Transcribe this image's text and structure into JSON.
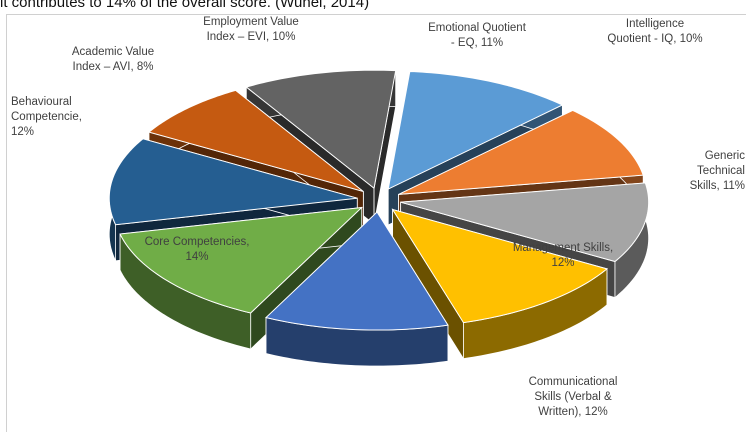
{
  "caption": "it contributes to 14% of the overall score. (Wuhel, 2014)",
  "chart_data": {
    "type": "pie",
    "style": "3d-exploded",
    "legend": "none",
    "slices": [
      {
        "label": "Emotional Quotient - EQ, 11%",
        "lines": [
          "Emotional Quotient",
          "- EQ, 11%"
        ],
        "value": 11,
        "color": "#5b9bd5"
      },
      {
        "label": "Intelligence Quotient - IQ, 10%",
        "lines": [
          "Intelligence",
          "Quotient - IQ, 10%"
        ],
        "value": 10,
        "color": "#ed7d31"
      },
      {
        "label": "Generic Technical Skills, 11%",
        "lines": [
          "Generic",
          "Technical",
          "Skills, 11%"
        ],
        "value": 11,
        "color": "#a5a5a5"
      },
      {
        "label": "Management Skills, 12%",
        "lines": [
          "Management Skills,",
          "12%"
        ],
        "value": 12,
        "color": "#ffc000"
      },
      {
        "label": "Communicational Skills (Verbal & Written), 12%",
        "lines": [
          "Communicational",
          "Skills (Verbal &",
          "Written), 12%"
        ],
        "value": 12,
        "color": "#4472c4"
      },
      {
        "label": "Core Competencies, 14%",
        "lines": [
          "Core Competencies,",
          "14%"
        ],
        "value": 14,
        "color": "#70ad47"
      },
      {
        "label": "Behavioural Competencie, 12%",
        "lines": [
          "Behavioural",
          "Competencie,",
          "12%"
        ],
        "value": 12,
        "color": "#255e91"
      },
      {
        "label": "Academic Value Index – AVI, 8%",
        "lines": [
          "Academic Value",
          "Index – AVI, 8%"
        ],
        "value": 8,
        "color": "#c55a11"
      },
      {
        "label": "Employment Value Index – EVI, 10%",
        "lines": [
          "Employment Value",
          "Index – EVI, 10%"
        ],
        "value": 10,
        "color": "#636363"
      }
    ]
  }
}
